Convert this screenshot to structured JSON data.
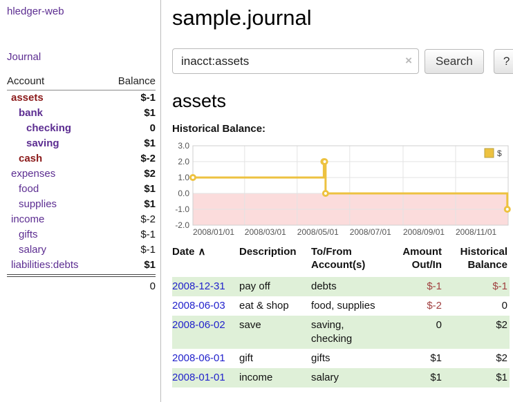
{
  "colors": {
    "link_purple": "#5c2d91",
    "link_blue": "#2222cc",
    "neg_strong": "#8b1a1a",
    "neg_medium": "#a04040",
    "neg_soft": "#bb7f7f",
    "row_green": "#dff0d8",
    "chart_line": "#edc240",
    "chart_neg_band": "#fbdcdc"
  },
  "sidebar": {
    "app_title": "hledger-web",
    "journal_link": "Journal",
    "accounts_table": {
      "header": {
        "account": "Account",
        "balance": "Balance"
      },
      "rows": [
        {
          "name": "assets",
          "balance": "$-1",
          "indent": 0,
          "bold": true,
          "name_neg": true,
          "bal_neg": "strong"
        },
        {
          "name": "bank",
          "balance": "$1",
          "indent": 1,
          "bold": true,
          "name_neg": false,
          "bal_neg": null
        },
        {
          "name": "checking",
          "balance": "0",
          "indent": 2,
          "bold": true,
          "name_neg": false,
          "bal_neg": null
        },
        {
          "name": "saving",
          "balance": "$1",
          "indent": 2,
          "bold": true,
          "name_neg": false,
          "bal_neg": null
        },
        {
          "name": "cash",
          "balance": "$-2",
          "indent": 1,
          "bold": true,
          "name_neg": true,
          "bal_neg": "strong"
        },
        {
          "name": "expenses",
          "balance": "$2",
          "indent": 0,
          "bold": false,
          "name_neg": false,
          "bal_neg": null
        },
        {
          "name": "food",
          "balance": "$1",
          "indent": 1,
          "bold": false,
          "name_neg": false,
          "bal_neg": null
        },
        {
          "name": "supplies",
          "balance": "$1",
          "indent": 1,
          "bold": false,
          "name_neg": false,
          "bal_neg": null
        },
        {
          "name": "income",
          "balance": "$-2",
          "indent": 0,
          "bold": false,
          "name_neg": false,
          "bal_neg": "soft"
        },
        {
          "name": "gifts",
          "balance": "$-1",
          "indent": 1,
          "bold": false,
          "name_neg": false,
          "bal_neg": "soft"
        },
        {
          "name": "salary",
          "balance": "$-1",
          "indent": 1,
          "bold": false,
          "name_neg": false,
          "bal_neg": "soft"
        },
        {
          "name": "liabilities:debts",
          "balance": "$1",
          "indent": 0,
          "bold": false,
          "name_neg": false,
          "bal_neg": null
        }
      ],
      "total": "0"
    }
  },
  "main": {
    "title": "sample.journal",
    "search": {
      "value": "inacct:assets",
      "clear_icon": "×",
      "button_label": "Search",
      "help_label": "?"
    },
    "account_heading": "assets",
    "chart_label": "Historical Balance:"
  },
  "chart_data": {
    "type": "line",
    "title": "Historical Balance",
    "series": [
      {
        "name": "$",
        "step": true,
        "points": [
          [
            "2008-01-01",
            1
          ],
          [
            "2008-06-01",
            2
          ],
          [
            "2008-06-02",
            2
          ],
          [
            "2008-06-03",
            0
          ],
          [
            "2008-12-31",
            -1
          ]
        ]
      }
    ],
    "y_ticks": [
      3.0,
      2.0,
      1.0,
      0.0,
      -1.0,
      -2.0
    ],
    "x_ticks": [
      "2008/01/01",
      "2008/03/01",
      "2008/05/01",
      "2008/07/01",
      "2008/09/01",
      "2008/11/01"
    ],
    "ylim": [
      -2,
      3
    ],
    "xlim": [
      "2008-01-01",
      "2009-01-01"
    ],
    "grid": true,
    "legend": {
      "position": "top-right",
      "entries": [
        "$"
      ]
    },
    "markings": [
      {
        "below": 0,
        "color": "#fbdcdc"
      }
    ]
  },
  "register": {
    "headers": {
      "date": "Date",
      "sort_icon": "∧",
      "description": "Description",
      "accounts": "To/From Account(s)",
      "amount": "Amount Out/In",
      "balance": "Historical Balance"
    },
    "rows": [
      {
        "date": "2008-12-31",
        "description": "pay off",
        "accounts": "debts",
        "amount": "$-1",
        "amount_neg": true,
        "balance": "$-1",
        "balance_neg": true,
        "shaded": true
      },
      {
        "date": "2008-06-03",
        "description": "eat & shop",
        "accounts": "food, supplies",
        "amount": "$-2",
        "amount_neg": true,
        "balance": "0",
        "balance_neg": false,
        "shaded": false
      },
      {
        "date": "2008-06-02",
        "description": "save",
        "accounts": "saving, checking",
        "amount": "0",
        "amount_neg": false,
        "balance": "$2",
        "balance_neg": false,
        "shaded": true
      },
      {
        "date": "2008-06-01",
        "description": "gift",
        "accounts": "gifts",
        "amount": "$1",
        "amount_neg": false,
        "balance": "$2",
        "balance_neg": false,
        "shaded": false
      },
      {
        "date": "2008-01-01",
        "description": "income",
        "accounts": "salary",
        "amount": "$1",
        "amount_neg": false,
        "balance": "$1",
        "balance_neg": false,
        "shaded": true
      }
    ]
  }
}
